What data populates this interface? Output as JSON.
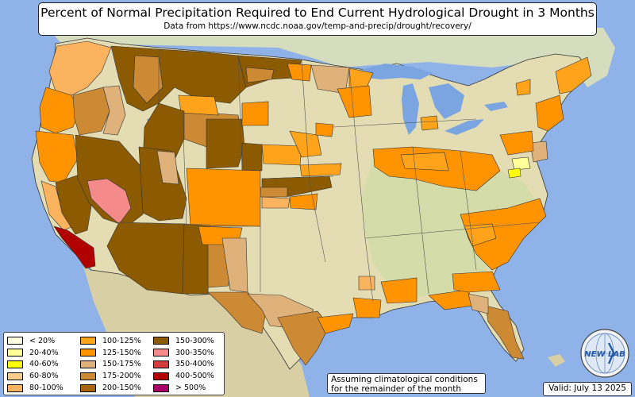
{
  "title": "Percent of Normal Precipitation Required to End Current Hydrological Drought in 3 Months",
  "subtitle": "Data from https://www.ncdc.noaa.gov/temp-and-precip/drought/recovery/",
  "legend": {
    "items": [
      {
        "label": "< 20%",
        "color": "#ffffe0"
      },
      {
        "label": "20-40%",
        "color": "#ffff9a"
      },
      {
        "label": "40-60%",
        "color": "#ffff00"
      },
      {
        "label": "60-80%",
        "color": "#f8cc8c"
      },
      {
        "label": "80-100%",
        "color": "#fbb35f"
      },
      {
        "label": "100-125%",
        "color": "#ffa31a"
      },
      {
        "label": "125-150%",
        "color": "#ff9400"
      },
      {
        "label": "150-175%",
        "color": "#deb27a"
      },
      {
        "label": "175-200%",
        "color": "#cd8a35"
      },
      {
        "label": "200-150%",
        "color": "#a8660c"
      },
      {
        "label": "150-300%",
        "color": "#8c5a00"
      },
      {
        "label": "300-350%",
        "color": "#f48a8a"
      },
      {
        "label": "350-400%",
        "color": "#d23c3c"
      },
      {
        "label": "400-500%",
        "color": "#b00000"
      },
      {
        "label": "> 500%",
        "color": "#a8006a"
      }
    ]
  },
  "note": {
    "line1": "Assuming climatological conditions",
    "line2": "for the remainder of the month"
  },
  "valid": "Valid: July 13 2025",
  "logo": {
    "text": "NEW LAB",
    "icon": "globe-icon"
  },
  "colors": {
    "ocean": "#8fb3e8",
    "land": "#e6dfb6",
    "land_green": "#c9d8a2",
    "canada": "#d7dcc0",
    "mexico": "#d9d0a8",
    "lakes": "#7aa5e0"
  }
}
